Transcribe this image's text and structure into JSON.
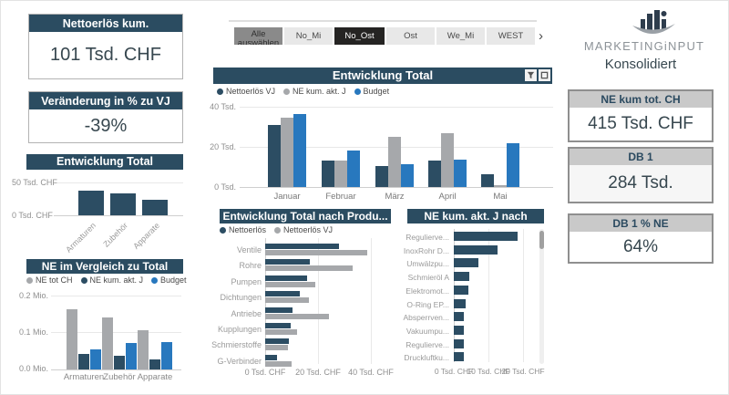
{
  "colors": {
    "navy": "#2b4c61",
    "dark": "#2c4d63",
    "gray": "#a6a8ab",
    "blue": "#2878be",
    "header_gray": "#c9c9c9"
  },
  "left_panel": {
    "kpi_cards": [
      {
        "title": "Nettoerlös kum.",
        "value": "101 Tsd. CHF"
      },
      {
        "title": "Veränderung in % zu VJ",
        "value": "-39%"
      }
    ]
  },
  "slicer": {
    "buttons": [
      {
        "label": "Alle auswählen",
        "style": "selected-gray"
      },
      {
        "label": "No_Mi",
        "style": "light"
      },
      {
        "label": "No_Ost",
        "style": "selected-dark"
      },
      {
        "label": "Ost",
        "style": "light"
      },
      {
        "label": "We_Mi",
        "style": "light"
      },
      {
        "label": "WEST",
        "style": "light"
      }
    ],
    "chevron": "›"
  },
  "right_panel": {
    "logo_text": "MARKETINGiNPUT",
    "subtitle": "Konsolidiert",
    "kpi_cards": [
      {
        "title": "NE kum tot. CH",
        "value": "415 Tsd. CHF"
      },
      {
        "title": "DB 1",
        "value": "284 Tsd."
      },
      {
        "title": "DB 1 % NE",
        "value": "64%"
      }
    ]
  },
  "chart_data": [
    {
      "id": "entwicklung-total-klein",
      "type": "bar",
      "title": "Entwicklung Total",
      "categories": [
        "Armaturen",
        "Zubehör",
        "Apparate"
      ],
      "values": [
        38,
        33,
        23
      ],
      "ylim": [
        0,
        50
      ],
      "yticks": [
        "50 Tsd. CHF",
        "0 Tsd. CHF"
      ]
    },
    {
      "id": "ne-vergleich-zu-total",
      "type": "bar",
      "title": "NE im Vergleich zu Total",
      "categories": [
        "Armaturen",
        "Zubehör",
        "Apparate"
      ],
      "series": [
        {
          "name": "NE tot CH",
          "color": "gray",
          "values": [
            0.163,
            0.141,
            0.107
          ]
        },
        {
          "name": "NE kum. akt. J",
          "color": "dark",
          "values": [
            0.041,
            0.036,
            0.027
          ]
        },
        {
          "name": "Budget",
          "color": "blue",
          "values": [
            0.054,
            0.071,
            0.075
          ]
        }
      ],
      "ylim": [
        0,
        0.2
      ],
      "yticks": [
        "0.2 Mio.",
        "0.1 Mio.",
        "0.0 Mio."
      ]
    },
    {
      "id": "entwicklung-total-monat",
      "type": "bar",
      "title": "Entwicklung Total",
      "categories": [
        "Januar",
        "Februar",
        "März",
        "April",
        "Mai"
      ],
      "series": [
        {
          "name": "Nettoerlös VJ",
          "color": "dark",
          "values": [
            31,
            13,
            10.5,
            13,
            6.5
          ]
        },
        {
          "name": "NE kum. akt. J",
          "color": "gray",
          "values": [
            34.5,
            13,
            25,
            27,
            1
          ]
        },
        {
          "name": "Budget",
          "color": "blue",
          "values": [
            36.5,
            18,
            11.5,
            13.5,
            22
          ]
        }
      ],
      "ylim": [
        0,
        40
      ],
      "yticks": [
        "40 Tsd.",
        "20 Tsd.",
        "0 Tsd."
      ]
    },
    {
      "id": "entwicklung-total-nach-produkt",
      "type": "hbar",
      "title": "Entwicklung Total nach Produ...",
      "categories": [
        "Ventile",
        "Rohre",
        "Pumpen",
        "Dichtungen",
        "Antriebe",
        "Kupplungen",
        "Schmierstoffe",
        "G-Verbinder"
      ],
      "series": [
        {
          "name": "Nettoerlös",
          "color": "dark",
          "values": [
            28,
            17,
            16,
            13,
            10.5,
            9.5,
            9,
            4.5
          ]
        },
        {
          "name": "Nettoerlös VJ",
          "color": "gray",
          "values": [
            38.5,
            33,
            19,
            16.5,
            24,
            12,
            8.5,
            10
          ]
        }
      ],
      "xlim": [
        0,
        45
      ],
      "xticks": [
        "0 Tsd. CHF",
        "20 Tsd. CHF",
        "40 Tsd. CHF"
      ]
    },
    {
      "id": "ne-kum-nach-produkt",
      "type": "hbar",
      "title": "NE kum. akt. J nach Prod...",
      "categories": [
        "Regulierve...",
        "InoxRohr D...",
        "Umwälzpu...",
        "Schmieröl A",
        "Elektromot...",
        "O-Ring EP...",
        "Absperrven...",
        "Vakuumpu...",
        "Regulierve...",
        "Druckluftku..."
      ],
      "values": [
        18.4,
        12.6,
        7,
        4.5,
        4.2,
        3.4,
        2.9,
        2.9,
        2.9,
        2.9
      ],
      "xlim": [
        0,
        25
      ],
      "xticks": [
        "0 Tsd. CHF",
        "10 Tsd. CHF",
        "20 Tsd. CHF"
      ]
    }
  ]
}
